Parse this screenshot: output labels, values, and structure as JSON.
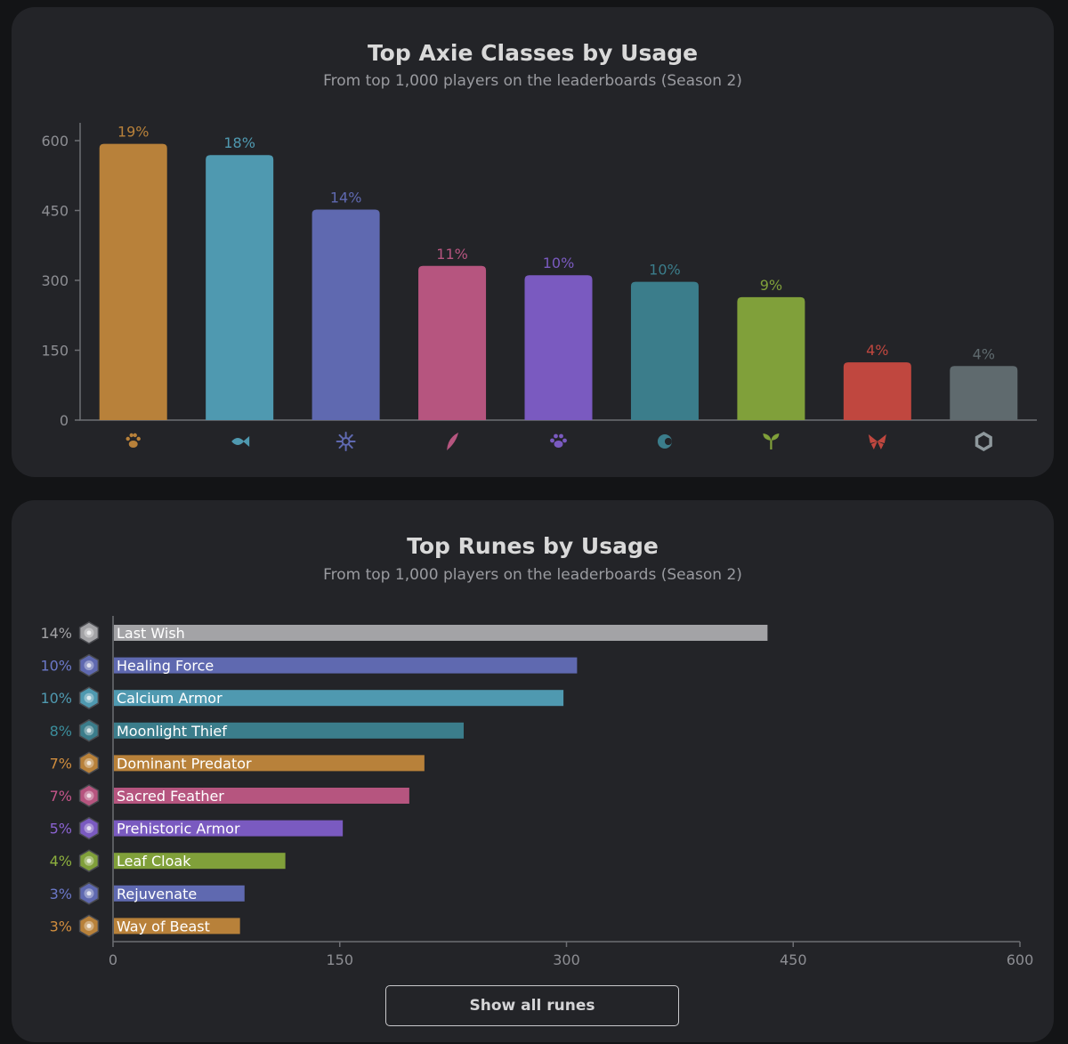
{
  "colors": {
    "beast": "#b8813a",
    "aquatic": "#4f99b0",
    "mech": "#5f69b0",
    "bird": "#b6557f",
    "bug": "#7a5ac0",
    "dusk": "#3b7d8b",
    "plant": "#80a03a",
    "reptile": "#7a5ac0",
    "dawn": "#c0473f",
    "neutral": "#5f6a6e",
    "rune_white": "#a3a3a6"
  },
  "chart_data": [
    {
      "type": "bar",
      "title": "Top Axie Classes by Usage",
      "subtitle": "From top 1,000 players on the leaderboards (Season 2)",
      "categories": [
        "beast-icon",
        "aquatic-icon",
        "mech-icon",
        "bird-icon",
        "bug-icon",
        "dusk-icon",
        "plant-icon",
        "dawn-icon",
        "neutral-icon"
      ],
      "values": [
        593,
        569,
        452,
        331,
        311,
        297,
        264,
        124,
        116
      ],
      "labels": [
        "19%",
        "18%",
        "14%",
        "11%",
        "10%",
        "10%",
        "9%",
        "4%",
        "4%"
      ],
      "colors": [
        "#b8813a",
        "#4f99b0",
        "#5f69b0",
        "#b6557f",
        "#7a5ac0",
        "#3b7d8b",
        "#80a03a",
        "#c0473f",
        "#5f6a6e"
      ],
      "yticks": [
        "0",
        "150",
        "300",
        "450",
        "600"
      ],
      "ylim": [
        0,
        600
      ],
      "grid": false
    },
    {
      "type": "bar",
      "orientation": "horizontal",
      "title": "Top Runes by Usage",
      "subtitle": "From top 1,000 players on the leaderboards (Season 2)",
      "categories": [
        "Last Wish",
        "Healing Force",
        "Calcium Armor",
        "Moonlight Thief",
        "Dominant Predator",
        "Sacred Feather",
        "Prehistoric Armor",
        "Leaf Cloak",
        "Rejuvenate",
        "Way of Beast"
      ],
      "values": [
        433,
        307,
        298,
        232,
        206,
        196,
        152,
        114,
        87,
        84
      ],
      "labels": [
        "14%",
        "10%",
        "10%",
        "8%",
        "7%",
        "7%",
        "5%",
        "4%",
        "3%",
        "3%"
      ],
      "colors": [
        "#a3a3a6",
        "#5f69b0",
        "#4f99b0",
        "#3b7d8b",
        "#b8813a",
        "#b6557f",
        "#7a5ac0",
        "#80a03a",
        "#5f69b0",
        "#b8813a"
      ],
      "label_colors": [
        "#a3a3a6",
        "#6b78c8",
        "#4f99b0",
        "#3b8d9b",
        "#d08d3e",
        "#c4558a",
        "#8a62d0",
        "#8db03e",
        "#6b78c8",
        "#d08d3e"
      ],
      "xticks": [
        "0",
        "150",
        "300",
        "450",
        "600"
      ],
      "xlim": [
        0,
        600
      ],
      "grid": false
    }
  ],
  "button": {
    "label": "Show all runes"
  }
}
